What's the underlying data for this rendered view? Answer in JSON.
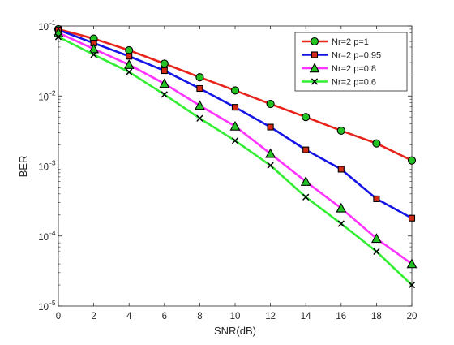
{
  "chart_data": {
    "type": "line",
    "title": "",
    "xlabel": "SNR(dB)",
    "ylabel": "BER",
    "xlim": [
      0,
      20
    ],
    "ylim": [
      1e-05,
      0.1
    ],
    "yscale": "log",
    "grid": false,
    "legend_position": "top-right",
    "x": [
      0,
      2,
      4,
      6,
      8,
      10,
      12,
      14,
      16,
      18,
      20
    ],
    "x_ticks": [
      0,
      2,
      4,
      6,
      8,
      10,
      12,
      14,
      16,
      18,
      20
    ],
    "x_tick_labels": [
      "0",
      "2",
      "4",
      "6",
      "8",
      "10",
      "12",
      "14",
      "16",
      "18",
      "20"
    ],
    "y_ticks": [
      {
        "value": 0.1,
        "base": "10",
        "exp": "-1"
      },
      {
        "value": 0.01,
        "base": "10",
        "exp": "-2"
      },
      {
        "value": 0.001,
        "base": "10",
        "exp": "-3"
      },
      {
        "value": 0.0001,
        "base": "10",
        "exp": "-4"
      },
      {
        "value": 1e-05,
        "base": "10",
        "exp": "-5"
      }
    ],
    "series": [
      {
        "name": "Nr=2 p=1",
        "color": "#e8231b",
        "marker": "circle",
        "marker_fill": "#22c322",
        "values": [
          0.09,
          0.066,
          0.045,
          0.029,
          0.0185,
          0.012,
          0.0077,
          0.005,
          0.0032,
          0.0021,
          0.0012
        ]
      },
      {
        "name": "Nr=2 p=0.95",
        "color": "#1414e6",
        "marker": "square",
        "marker_fill": "#d42a16",
        "values": [
          0.088,
          0.057,
          0.037,
          0.023,
          0.0128,
          0.0069,
          0.0036,
          0.0017,
          0.0009,
          0.00034,
          0.00018
        ]
      },
      {
        "name": "Nr=2 p=0.8",
        "color": "#ff33ff",
        "marker": "triangle",
        "marker_fill": "#22c322",
        "values": [
          0.08,
          0.047,
          0.028,
          0.015,
          0.0073,
          0.0037,
          0.0015,
          0.0006,
          0.00025,
          9.2e-05,
          4e-05
        ]
      },
      {
        "name": "Nr=2 p=0.6",
        "color": "#33ee33",
        "marker": "x",
        "marker_fill": "#000000",
        "values": [
          0.07,
          0.039,
          0.022,
          0.0105,
          0.0048,
          0.0023,
          0.00102,
          0.00036,
          0.00015,
          6e-05,
          2e-05
        ]
      }
    ]
  }
}
